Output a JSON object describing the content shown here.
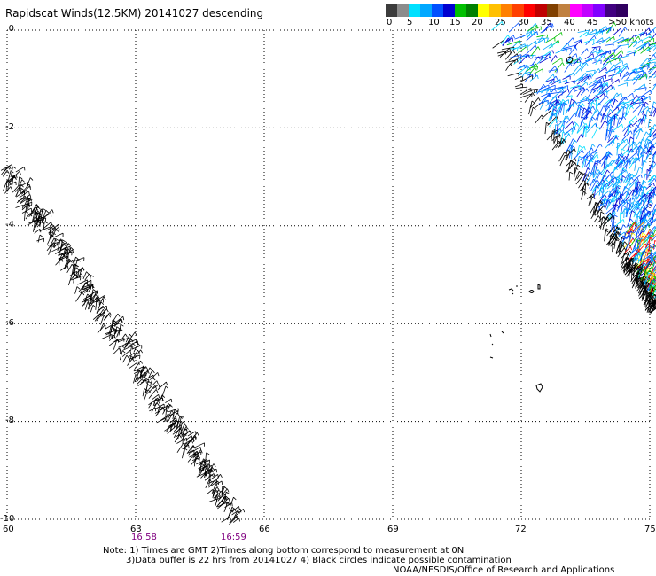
{
  "title": "Rapidscat Winds(12.5KM) 20141027 descending",
  "colorbar": {
    "labels": [
      "0",
      "5",
      "10",
      "15",
      "20",
      "25",
      "30",
      "35",
      "40",
      "45",
      ">50 knots"
    ],
    "colors": [
      "#3c3c3c",
      "#8c8c8c",
      "#00e0ff",
      "#00a8ff",
      "#0050ff",
      "#0000d0",
      "#00c000",
      "#008000",
      "#ffff00",
      "#ffc000",
      "#ff8000",
      "#ff4000",
      "#ff0000",
      "#c00000",
      "#804000",
      "#c08040",
      "#ff00ff",
      "#c000ff",
      "#8000ff",
      "#400080",
      "#300060"
    ]
  },
  "axes": {
    "y_labels": [
      "0",
      "-2",
      "-4",
      "-6",
      "-8",
      "-10"
    ],
    "x_labels": [
      "60",
      "63",
      "66",
      "69",
      "72",
      "75"
    ],
    "lat_range": [
      -10,
      0
    ],
    "lon_range": [
      60,
      75
    ]
  },
  "pass_times": [
    "16:58",
    "16:59"
  ],
  "notes": {
    "line1": "Note: 1) Times are GMT 2)Times along bottom correspond to measurement at 0N",
    "line2": "3)Data buffer is 22 hrs from 20141027 4) Black circles indicate possible contamination",
    "credit": "NOAA/NESDIS/Office of Research and Applications"
  }
}
